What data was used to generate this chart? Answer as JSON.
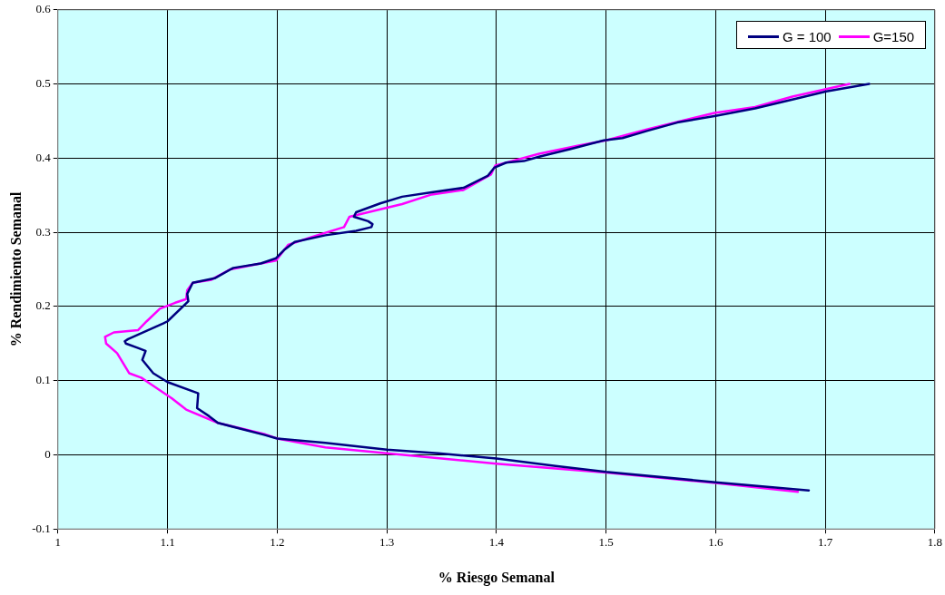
{
  "chart_data": {
    "type": "line",
    "xlabel": "% Riesgo Semanal",
    "ylabel": "% Rendimiento Semanal",
    "xlim": [
      1,
      1.8
    ],
    "xticks": [
      1,
      1.1,
      1.2,
      1.3,
      1.4,
      1.5,
      1.6,
      1.7,
      1.8
    ],
    "ylim": [
      -0.1,
      0.6
    ],
    "yticks": [
      -0.1,
      0,
      0.1,
      0.2,
      0.3,
      0.4,
      0.5,
      0.6
    ],
    "grid": true,
    "legend": "top right",
    "marker": "none",
    "line_style": "solid",
    "series": [
      {
        "name": "G = 100",
        "color": "#000080",
        "x": [
          1.685,
          1.6,
          1.5,
          1.454,
          1.4,
          1.347,
          1.3,
          1.244,
          1.2,
          1.188,
          1.146,
          1.138,
          1.127,
          1.128,
          1.1,
          1.087,
          1.077,
          1.08,
          1.073,
          1.062,
          1.061,
          1.064,
          1.096,
          1.1,
          1.119,
          1.118,
          1.123,
          1.143,
          1.16,
          1.185,
          1.199,
          1.207,
          1.216,
          1.244,
          1.272,
          1.286,
          1.287,
          1.283,
          1.27,
          1.272,
          1.294,
          1.314,
          1.341,
          1.37,
          1.392,
          1.398,
          1.409,
          1.425,
          1.439,
          1.467,
          1.498,
          1.515,
          1.538,
          1.565,
          1.6,
          1.636,
          1.67,
          1.701,
          1.74
        ],
        "values": [
          -0.048,
          -0.037,
          -0.023,
          -0.015,
          -0.005,
          0.002,
          0.007,
          0.016,
          0.022,
          0.027,
          0.043,
          0.052,
          0.063,
          0.083,
          0.098,
          0.11,
          0.128,
          0.14,
          0.144,
          0.15,
          0.153,
          0.156,
          0.177,
          0.18,
          0.207,
          0.217,
          0.232,
          0.238,
          0.252,
          0.258,
          0.265,
          0.277,
          0.287,
          0.296,
          0.302,
          0.307,
          0.311,
          0.315,
          0.321,
          0.327,
          0.339,
          0.348,
          0.354,
          0.36,
          0.376,
          0.387,
          0.394,
          0.396,
          0.402,
          0.412,
          0.424,
          0.427,
          0.437,
          0.448,
          0.457,
          0.467,
          0.479,
          0.49,
          0.5
        ]
      },
      {
        "name": "G=150",
        "color": "#ff00ff",
        "x": [
          1.675,
          1.6,
          1.5,
          1.4,
          1.3,
          1.244,
          1.2,
          1.188,
          1.146,
          1.117,
          1.104,
          1.085,
          1.076,
          1.065,
          1.054,
          1.044,
          1.043,
          1.051,
          1.073,
          1.081,
          1.093,
          1.107,
          1.117,
          1.118,
          1.123,
          1.14,
          1.157,
          1.185,
          1.199,
          1.21,
          1.23,
          1.261,
          1.266,
          1.283,
          1.314,
          1.341,
          1.37,
          1.395,
          1.399,
          1.414,
          1.439,
          1.475,
          1.5,
          1.538,
          1.599,
          1.636,
          1.67,
          1.722
        ],
        "values": [
          -0.05,
          -0.038,
          -0.024,
          -0.012,
          0.002,
          0.01,
          0.022,
          0.028,
          0.043,
          0.061,
          0.076,
          0.095,
          0.104,
          0.11,
          0.137,
          0.15,
          0.159,
          0.165,
          0.168,
          0.18,
          0.197,
          0.205,
          0.21,
          0.222,
          0.232,
          0.236,
          0.25,
          0.258,
          0.262,
          0.283,
          0.293,
          0.307,
          0.321,
          0.327,
          0.338,
          0.351,
          0.357,
          0.378,
          0.39,
          0.396,
          0.406,
          0.417,
          0.424,
          0.439,
          0.461,
          0.469,
          0.483,
          0.5
        ]
      }
    ]
  }
}
